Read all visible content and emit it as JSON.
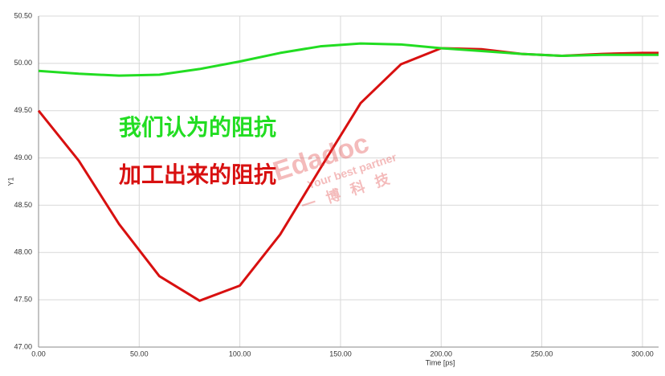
{
  "chart_data": {
    "type": "line",
    "x": [
      0,
      20,
      40,
      60,
      80,
      100,
      120,
      140,
      160,
      180,
      200,
      220,
      240,
      260,
      280,
      300,
      308
    ],
    "series": [
      {
        "name": "加工出来的阻抗",
        "color": "#d81010",
        "values": [
          49.5,
          48.97,
          48.3,
          47.75,
          47.49,
          47.65,
          48.19,
          48.89,
          49.58,
          49.99,
          50.16,
          50.15,
          50.1,
          50.08,
          50.1,
          50.11,
          50.11
        ]
      },
      {
        "name": "我们认为的阻抗",
        "color": "#22dd22",
        "values": [
          49.92,
          49.89,
          49.87,
          49.88,
          49.94,
          50.02,
          50.11,
          50.18,
          50.21,
          50.2,
          50.16,
          50.13,
          50.1,
          50.08,
          50.09,
          50.09,
          50.09
        ]
      }
    ],
    "xlim": [
      0,
      308
    ],
    "ylim": [
      47.0,
      50.5
    ],
    "xticks": [
      {
        "value": 0,
        "label": "0.00"
      },
      {
        "value": 50,
        "label": "50.00"
      },
      {
        "value": 100,
        "label": "100.00"
      },
      {
        "value": 150,
        "label": "150.00"
      },
      {
        "value": 200,
        "label": "200.00"
      },
      {
        "value": 250,
        "label": "250.00"
      },
      {
        "value": 300,
        "label": "300.00"
      }
    ],
    "yticks": [
      {
        "value": 47,
        "label": "47.00"
      },
      {
        "value": 47.5,
        "label": "47.50"
      },
      {
        "value": 48,
        "label": "48.00"
      },
      {
        "value": 48.5,
        "label": "48.50"
      },
      {
        "value": 49,
        "label": "49.00"
      },
      {
        "value": 49.5,
        "label": "49.50"
      },
      {
        "value": 50,
        "label": "50.00"
      },
      {
        "value": 50.5,
        "label": "50.50"
      }
    ],
    "xlabel": "Time [ps]",
    "ylabel": "Y1",
    "grid": true,
    "watermark": {
      "logo": "Edadoc",
      "slogan": "Your best partner",
      "company": "一博科技"
    }
  }
}
